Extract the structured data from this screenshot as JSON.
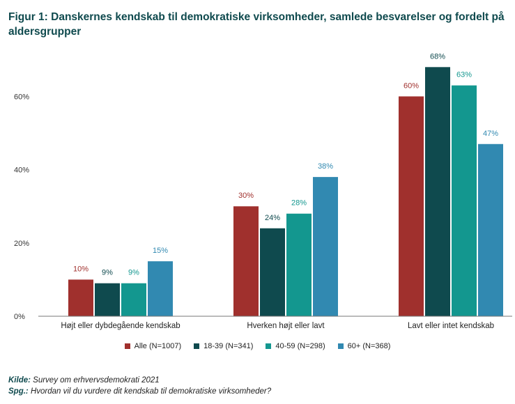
{
  "chart_data": {
    "type": "bar",
    "title": "Figur 1: Danskernes kendskab til demokratiske virksomheder, samlede besvarelser og fordelt på aldersgrupper",
    "categories": [
      "Højt eller dybdegående kendskab",
      "Hverken højt eller lavt",
      "Lavt eller intet kendskab"
    ],
    "series": [
      {
        "name": "Alle (N=1007)",
        "color": "#a0302d",
        "values": [
          10,
          30,
          60
        ],
        "labels": [
          "10%",
          "30%",
          "60%"
        ]
      },
      {
        "name": "18-39 (N=341)",
        "color": "#0f4a4e",
        "values": [
          9,
          24,
          68
        ],
        "labels": [
          "9%",
          "24%",
          "68%"
        ]
      },
      {
        "name": "40-59 (N=298)",
        "color": "#13978f",
        "values": [
          9,
          28,
          63
        ],
        "labels": [
          "9%",
          "28%",
          "63%"
        ]
      },
      {
        "name": "60+ (N=368)",
        "color": "#3189b1",
        "values": [
          15,
          38,
          47
        ],
        "labels": [
          "15%",
          "38%",
          "47%"
        ]
      }
    ],
    "yticks": [
      0,
      20,
      40,
      60
    ],
    "ytick_labels": [
      "0%",
      "20%",
      "40%",
      "60%"
    ],
    "ylim": [
      0,
      70
    ],
    "xlabel": "",
    "ylabel": "",
    "legend_position": "bottom",
    "grid": false
  },
  "footer": {
    "source_label": "Kilde:",
    "source_text": "Survey om erhvervsdemokrati 2021",
    "question_label": "Spg.:",
    "question_text": "Hvordan vil du vurdere dit kendskab til demokratiske virksomheder?"
  }
}
